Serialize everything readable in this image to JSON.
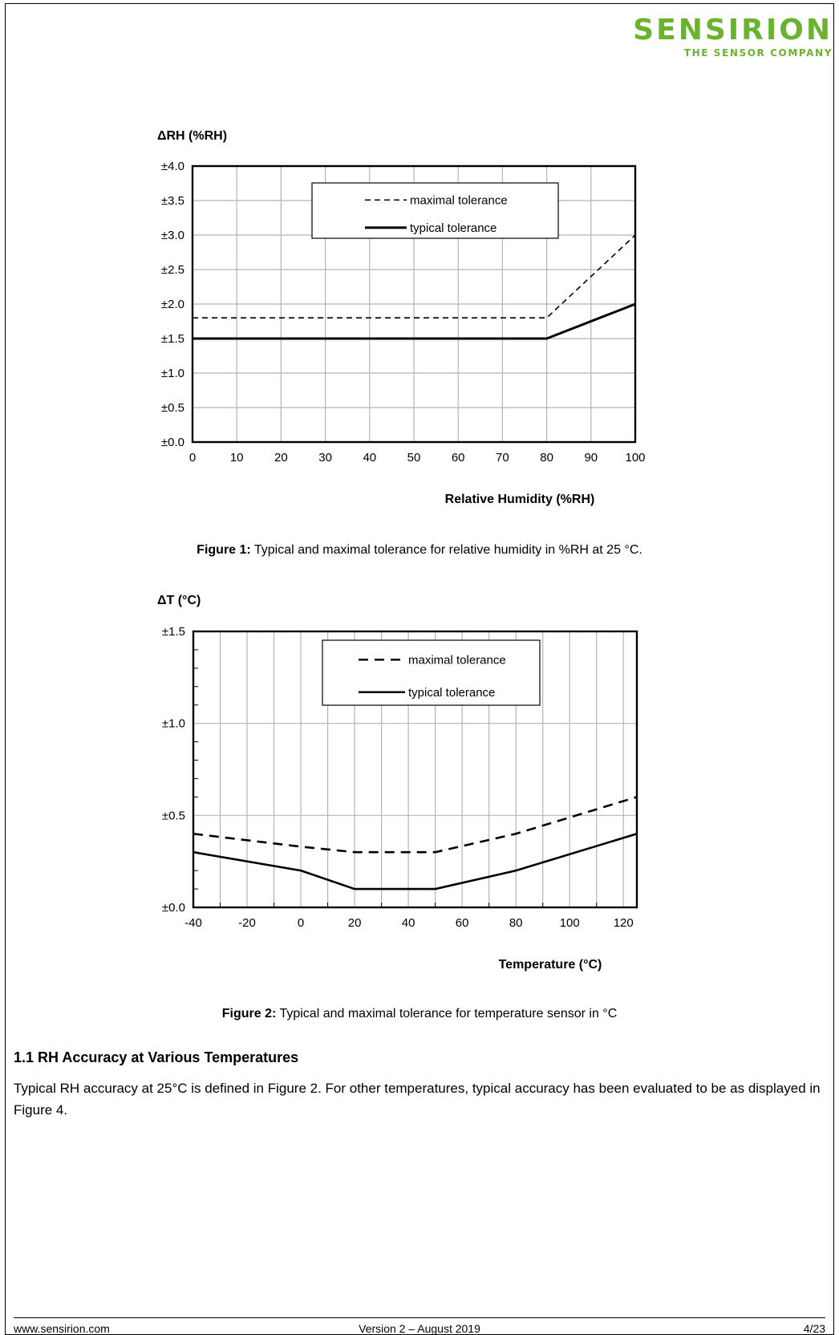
{
  "logo": {
    "wordmark": "SENSIRION",
    "tagline": "THE SENSOR COMPANY",
    "color": "#6ab32f"
  },
  "figures": [
    {
      "caption_label": "Figure 1:",
      "caption_text": " Typical and maximal tolerance for relative humidity in %RH at 25 °C."
    },
    {
      "caption_label": "Figure 2:",
      "caption_text": " Typical and maximal tolerance for temperature sensor in °C"
    }
  ],
  "chart_data": [
    {
      "type": "line",
      "title": "",
      "ylabel": "ΔRH (%RH)",
      "xlabel": "Relative Humidity (%RH)",
      "xlim": [
        0,
        100
      ],
      "ylim": [
        0,
        4
      ],
      "x_ticks": [
        0,
        10,
        20,
        30,
        40,
        50,
        60,
        70,
        80,
        90,
        100
      ],
      "y_ticks": [
        0,
        0.5,
        1,
        1.5,
        2,
        2.5,
        3,
        3.5,
        4
      ],
      "y_tick_labels": [
        "±0.0",
        "±0.5",
        "±1.0",
        "±1.5",
        "±2.0",
        "±2.5",
        "±3.0",
        "±3.5",
        "±4.0"
      ],
      "grid": true,
      "legend_position": "top-center",
      "series": [
        {
          "name": "maximal tolerance",
          "style": "dashed",
          "x": [
            0,
            80,
            100
          ],
          "y": [
            1.8,
            1.8,
            3.0
          ]
        },
        {
          "name": "typical tolerance",
          "style": "solid",
          "x": [
            0,
            80,
            100
          ],
          "y": [
            1.5,
            1.5,
            2.0
          ]
        }
      ]
    },
    {
      "type": "line",
      "title": "",
      "ylabel": "ΔT (°C)",
      "xlabel": "Temperature (°C)",
      "xlim": [
        -40,
        125
      ],
      "ylim": [
        0,
        1.5
      ],
      "x_ticks": [
        -40,
        -20,
        0,
        20,
        40,
        60,
        80,
        100,
        120
      ],
      "y_ticks": [
        0,
        0.5,
        1,
        1.5
      ],
      "y_tick_labels": [
        "±0.0",
        "±0.5",
        "±1.0",
        "±1.5"
      ],
      "grid": true,
      "legend_position": "top-center",
      "series": [
        {
          "name": "maximal tolerance",
          "style": "dashed",
          "x": [
            -40,
            0,
            20,
            50,
            80,
            125
          ],
          "y": [
            0.4,
            0.33,
            0.3,
            0.3,
            0.4,
            0.6
          ]
        },
        {
          "name": "typical tolerance",
          "style": "solid",
          "x": [
            -40,
            0,
            20,
            50,
            80,
            125
          ],
          "y": [
            0.3,
            0.2,
            0.1,
            0.1,
            0.2,
            0.4
          ]
        }
      ]
    }
  ],
  "section": {
    "heading": "1.1 RH Accuracy at Various Temperatures",
    "body": "Typical RH accuracy at 25°C is defined in Figure 2. For other temperatures, typical accuracy has been evaluated to be as displayed in Figure 4."
  },
  "footer": {
    "website": "www.sensirion.com",
    "version": "Version 2 – August 2019",
    "page": "4/23"
  }
}
